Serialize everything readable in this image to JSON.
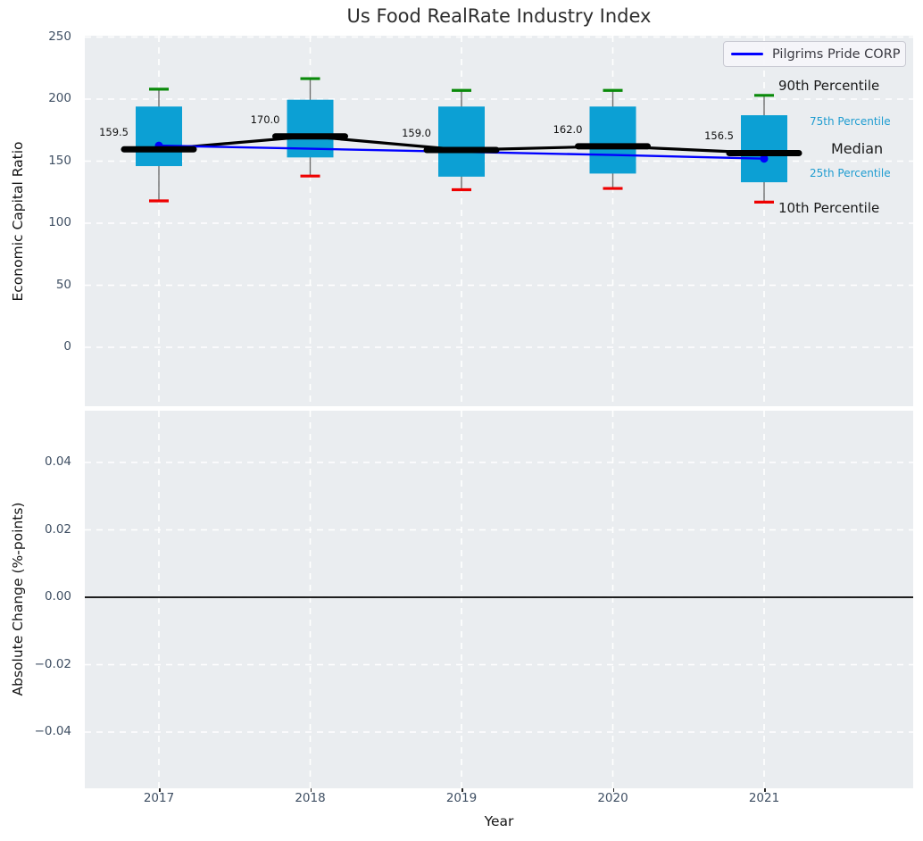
{
  "figure": {
    "title": "Us Food RealRate Industry Index",
    "xlabel": "Year",
    "legend": {
      "label": "Pilgrims Pride CORP"
    }
  },
  "top_panel": {
    "ylabel": "Economic Capital Ratio",
    "ytick_values": [
      250,
      200,
      150,
      100,
      50,
      0
    ],
    "percentile_labels": [
      {
        "text": "90th Percentile",
        "tone": "dark"
      },
      {
        "text": "75th Percentile",
        "tone": "cyan"
      },
      {
        "text": "Median",
        "tone": "median"
      },
      {
        "text": "25th Percentile",
        "tone": "cyan"
      },
      {
        "text": "10th Percentile",
        "tone": "dark"
      }
    ]
  },
  "bottom_panel": {
    "ylabel": "Absolute Change (%-points)",
    "yticks": [
      "0.04",
      "0.02",
      "0.00",
      "−0.02",
      "−0.04"
    ],
    "ytick_values": [
      0.04,
      0.02,
      0,
      -0.02,
      -0.04
    ]
  },
  "x_ticks": [
    "2017",
    "2018",
    "2019",
    "2020",
    "2021"
  ],
  "colors": {
    "box_fill": "#0ca0d4",
    "company_line": "#0000ff",
    "p90_cap": "#0a8a0a",
    "p10_cap": "#ee0000",
    "median_line": "#000000",
    "whisker": "#6e6e6e",
    "cyan_label": "#1e9cd0",
    "panel_bg": "#eaedf0",
    "grid": "#ffffff"
  },
  "chart_data": [
    {
      "type": "box",
      "title": "Us Food RealRate Industry Index",
      "xlabel": "Year",
      "ylabel": "Economic Capital Ratio",
      "categories": [
        2017,
        2018,
        2019,
        2020,
        2021
      ],
      "ylim": [
        -47.5,
        251
      ],
      "yticks": [
        0,
        50,
        100,
        150,
        200,
        250
      ],
      "grid": true,
      "legend_position": "upper right",
      "boxes": [
        {
          "year": 2017,
          "p10": 118,
          "p25": 146,
          "median": 159.5,
          "p75": 194,
          "p90": 208
        },
        {
          "year": 2018,
          "p10": 138,
          "p25": 153,
          "median": 170.0,
          "p75": 199.5,
          "p90": 216.5
        },
        {
          "year": 2019,
          "p10": 127,
          "p25": 137.5,
          "median": 159.0,
          "p75": 194,
          "p90": 207
        },
        {
          "year": 2020,
          "p10": 128,
          "p25": 140,
          "median": 162.0,
          "p75": 194,
          "p90": 207
        },
        {
          "year": 2021,
          "p10": 117,
          "p25": 133,
          "median": 156.5,
          "p75": 187,
          "p90": 203
        }
      ],
      "median_labels": [
        "159.5",
        "170.0",
        "159.0",
        "162.0",
        "156.5"
      ],
      "series": [
        {
          "name": "Pilgrims Pride CORP",
          "values": [
            162.5,
            160.0,
            157.5,
            155.0,
            152.0
          ]
        }
      ],
      "annotations": [
        "90th Percentile",
        "75th Percentile",
        "Median",
        "25th Percentile",
        "10th Percentile"
      ]
    },
    {
      "type": "line",
      "xlabel": "Year",
      "ylabel": "Absolute Change (%-points)",
      "x": [
        2017,
        2018,
        2019,
        2020,
        2021
      ],
      "series": [],
      "yticks": [
        0.04,
        0.02,
        0,
        -0.02,
        -0.04
      ],
      "ylim": [
        -0.0565,
        0.0554
      ],
      "zero_line": 0.0,
      "grid": true
    }
  ]
}
